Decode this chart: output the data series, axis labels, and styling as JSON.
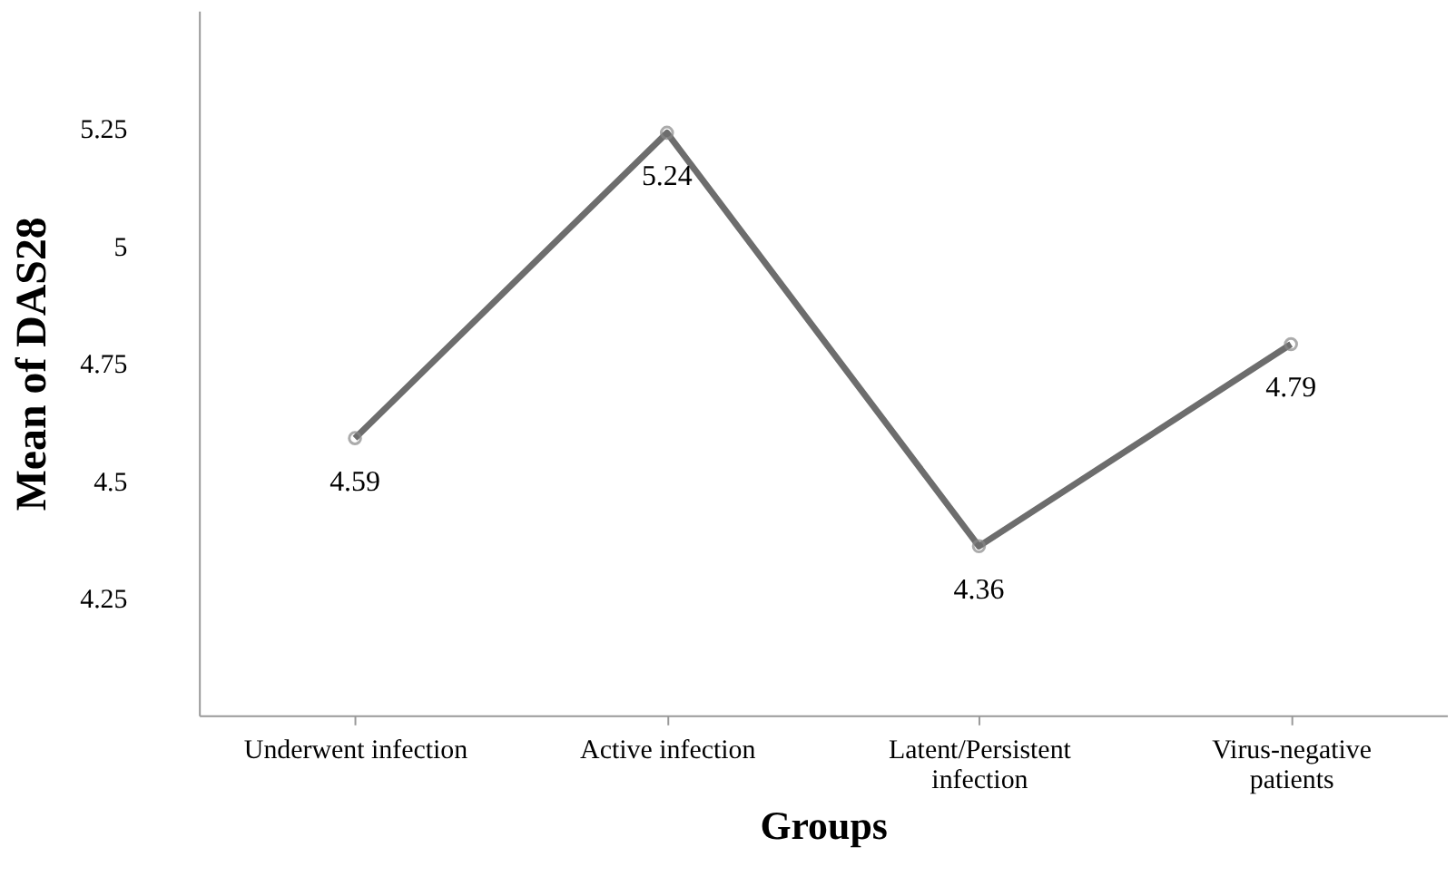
{
  "chart_data": {
    "type": "line",
    "xlabel": "Groups",
    "ylabel": "Mean of DAS28",
    "categories": [
      "Underwent infection",
      "Active infection",
      "Latent/Persistent infection",
      "Virus-negative patients"
    ],
    "series": [
      {
        "color": "#6d6d6d",
        "values": [
          4.59,
          5.24,
          4.36,
          4.79
        ]
      }
    ],
    "ylim": [
      4.0,
      5.5
    ],
    "yticks": [
      4.25,
      4.5,
      4.75,
      5,
      5.25
    ],
    "grid": false,
    "marker": "circle",
    "line_style": "solid",
    "data_labels": true
  }
}
